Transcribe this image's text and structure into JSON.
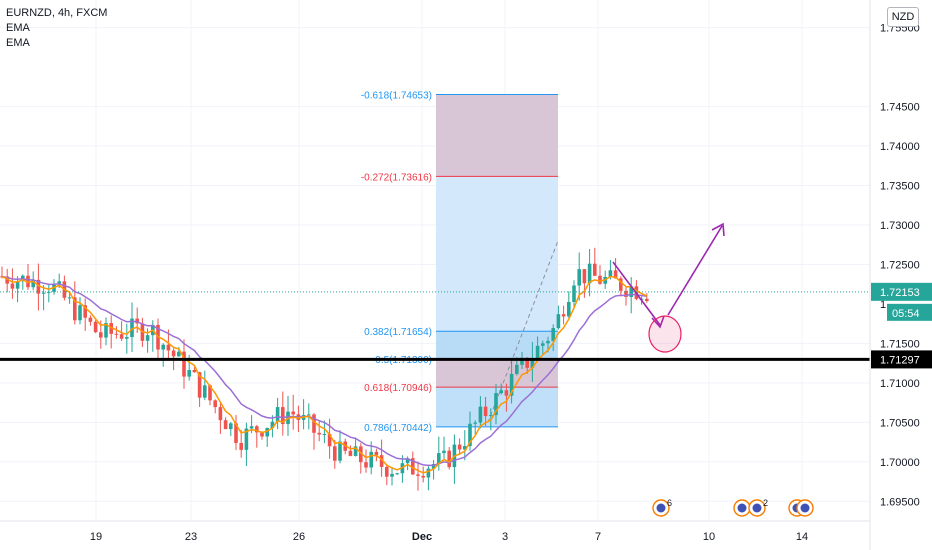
{
  "header": {
    "symbol_line": "EURNZD, 4h, FXCM",
    "indicator_1": "EMA",
    "indicator_2": "EMA"
  },
  "currency_badge": "NZD",
  "price_axis": {
    "ticks": [
      "1.75500",
      "1.74500",
      "1.74000",
      "1.73500",
      "1.73000",
      "1.72500",
      "1.71500",
      "1.71000",
      "1.70500",
      "1.70000",
      "1.69500"
    ],
    "current_price": "1.72153",
    "countdown": "05:54",
    "level_label": "1.71297",
    "partial_label": "1"
  },
  "time_axis": {
    "ticks": [
      "19",
      "23",
      "26",
      "Dec",
      "3",
      "7",
      "10",
      "14"
    ]
  },
  "fibonacci": {
    "levels": [
      {
        "label": "-0.618(1.74653)",
        "color": "#2196f3"
      },
      {
        "label": "-0.272(1.73616)",
        "color": "#f23645"
      },
      {
        "label": "0.382(1.71654)",
        "color": "#2196f3"
      },
      {
        "label": "0.5(1.71300)",
        "color": "#2196f3"
      },
      {
        "label": "0.618(1.70946)",
        "color": "#f23645"
      },
      {
        "label": "0.786(1.70442)",
        "color": "#2196f3"
      }
    ]
  },
  "event_badges": [
    "6",
    "2"
  ],
  "colors": {
    "up": "#26a69a",
    "down": "#ef5350",
    "ema_fast": "#ff9800",
    "ema_slow": "#9c6fd6",
    "annotation": "#9c27b0",
    "support_line": "#000000"
  },
  "chart_data": {
    "type": "candlestick",
    "symbol": "EURNZD",
    "timeframe": "4h",
    "source": "FXCM",
    "ylim": [
      1.6925,
      1.7585
    ],
    "x_ticks": [
      "19",
      "23",
      "26",
      "Dec",
      "3",
      "7",
      "10",
      "14"
    ],
    "y_ticks": [
      1.755,
      1.745,
      1.74,
      1.735,
      1.73,
      1.725,
      1.715,
      1.71,
      1.705,
      1.7,
      1.695
    ],
    "current_price": 1.72153,
    "horizontal_level": 1.71297,
    "fib_levels": [
      {
        "ratio": -0.618,
        "price": 1.74653
      },
      {
        "ratio": -0.272,
        "price": 1.73616
      },
      {
        "ratio": 0.382,
        "price": 1.71654
      },
      {
        "ratio": 0.5,
        "price": 1.713
      },
      {
        "ratio": 0.618,
        "price": 1.70946
      },
      {
        "ratio": 0.786,
        "price": 1.70442
      }
    ],
    "series": [
      {
        "name": "EMA"
      },
      {
        "name": "EMA"
      }
    ]
  }
}
